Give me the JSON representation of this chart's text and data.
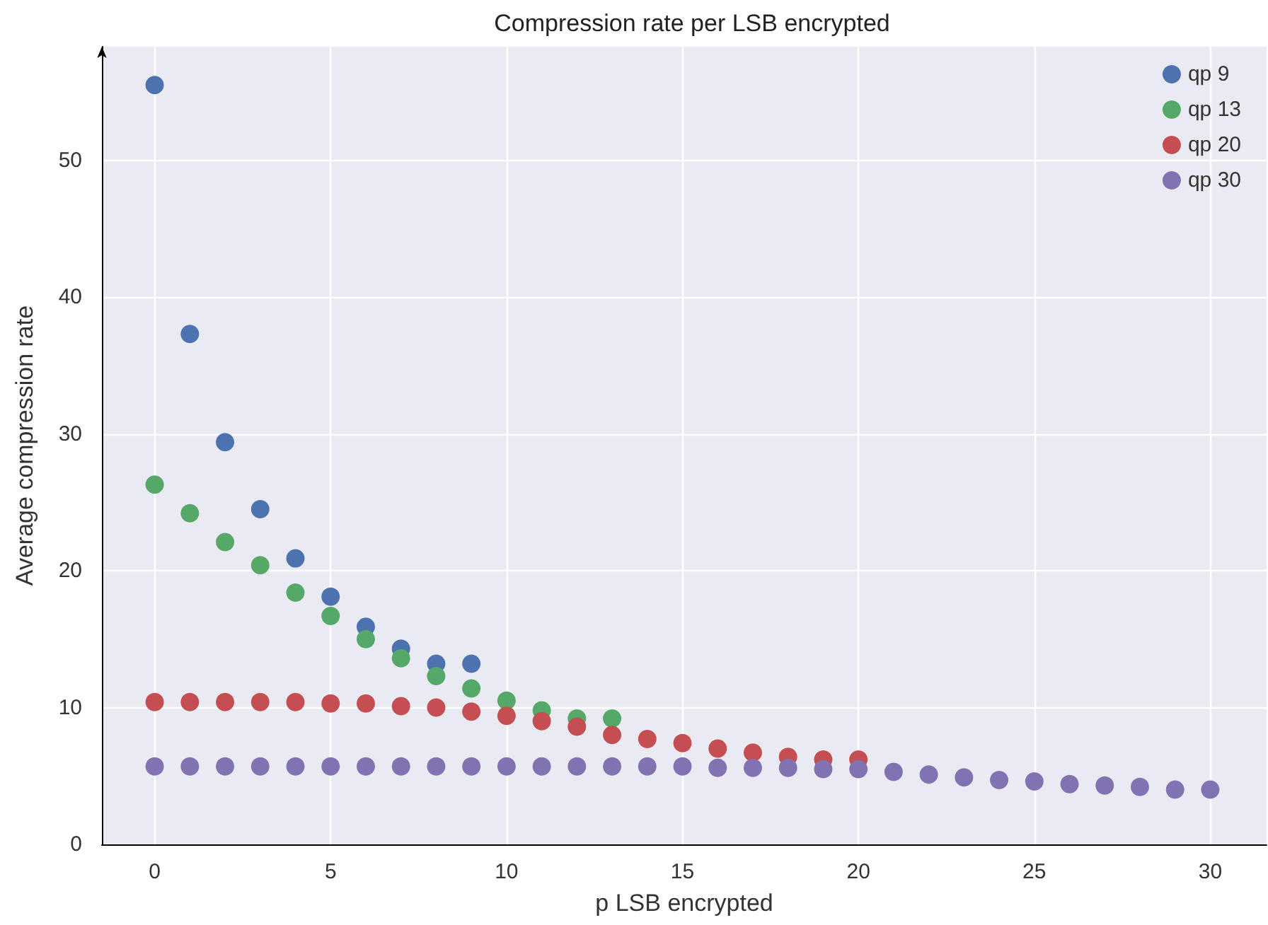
{
  "chart_data": {
    "type": "scatter",
    "title": "Compression rate per LSB encrypted",
    "xlabel": "p LSB encrypted",
    "ylabel": "Average compression rate",
    "xlim": [
      -1.5,
      31.6
    ],
    "xticks": [
      0,
      5,
      10,
      15,
      20,
      25,
      30
    ],
    "ylim": [
      0,
      58.3
    ],
    "yticks": [
      0,
      10,
      20,
      30,
      40,
      50
    ],
    "grid": true,
    "legend": "top right",
    "marker": "circle",
    "series": [
      {
        "name": "qp 9",
        "color": "#4c72b0",
        "x": [
          0,
          1,
          2,
          3,
          4,
          5,
          6,
          7,
          8,
          9
        ],
        "values": [
          55.5,
          37.3,
          29.4,
          24.5,
          20.9,
          18.1,
          15.9,
          14.3,
          13.2,
          13.2
        ]
      },
      {
        "name": "qp 13",
        "color": "#55a868",
        "x": [
          0,
          1,
          2,
          3,
          4,
          5,
          6,
          7,
          8,
          9,
          10,
          11,
          12,
          13
        ],
        "values": [
          26.3,
          24.2,
          22.1,
          20.4,
          18.4,
          16.7,
          15.0,
          13.6,
          12.3,
          11.4,
          10.5,
          9.8,
          9.2,
          9.2
        ]
      },
      {
        "name": "qp 20",
        "color": "#c44e52",
        "x": [
          0,
          1,
          2,
          3,
          4,
          5,
          6,
          7,
          8,
          9,
          10,
          11,
          12,
          13,
          14,
          15,
          16,
          17,
          18,
          19,
          20
        ],
        "values": [
          10.4,
          10.4,
          10.4,
          10.4,
          10.4,
          10.3,
          10.3,
          10.1,
          10.0,
          9.7,
          9.4,
          9.0,
          8.6,
          8.0,
          7.7,
          7.4,
          7.0,
          6.7,
          6.4,
          6.2,
          6.2
        ]
      },
      {
        "name": "qp 30",
        "color": "#8172b2",
        "x": [
          0,
          1,
          2,
          3,
          4,
          5,
          6,
          7,
          8,
          9,
          10,
          11,
          12,
          13,
          14,
          15,
          16,
          17,
          18,
          19,
          20,
          21,
          22,
          23,
          24,
          25,
          26,
          27,
          28,
          29,
          30
        ],
        "values": [
          5.7,
          5.7,
          5.7,
          5.7,
          5.7,
          5.7,
          5.7,
          5.7,
          5.7,
          5.7,
          5.7,
          5.7,
          5.7,
          5.7,
          5.7,
          5.7,
          5.6,
          5.6,
          5.6,
          5.5,
          5.5,
          5.3,
          5.1,
          4.9,
          4.7,
          4.6,
          4.4,
          4.3,
          4.2,
          4.0,
          4.0
        ]
      }
    ]
  }
}
